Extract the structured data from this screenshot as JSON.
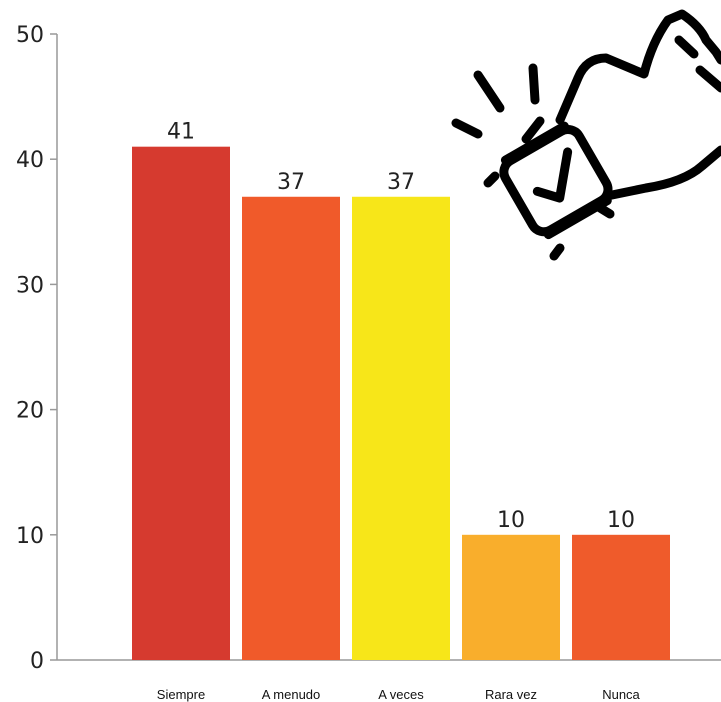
{
  "chart_data": {
    "type": "bar",
    "categories": [
      "Siempre",
      "A menudo",
      "A veces",
      "Rara vez",
      "Nunca"
    ],
    "values": [
      41,
      37,
      37,
      10,
      10
    ],
    "data_labels": [
      "41",
      "37",
      "37",
      "10",
      "10"
    ],
    "colors": [
      "#d63a2f",
      "#f05a2a",
      "#f7e619",
      "#f9ae2c",
      "#ef5b2b"
    ],
    "title": "",
    "xlabel": "",
    "ylabel": "",
    "ylim": [
      0,
      50
    ],
    "yticks": [
      0,
      10,
      20,
      30,
      40,
      50
    ],
    "ytick_labels": [
      "0",
      "10",
      "20",
      "30",
      "40",
      "50"
    ],
    "grid": false,
    "legend": "none"
  },
  "decoration": {
    "icon": "smartwatch-check-icon"
  }
}
